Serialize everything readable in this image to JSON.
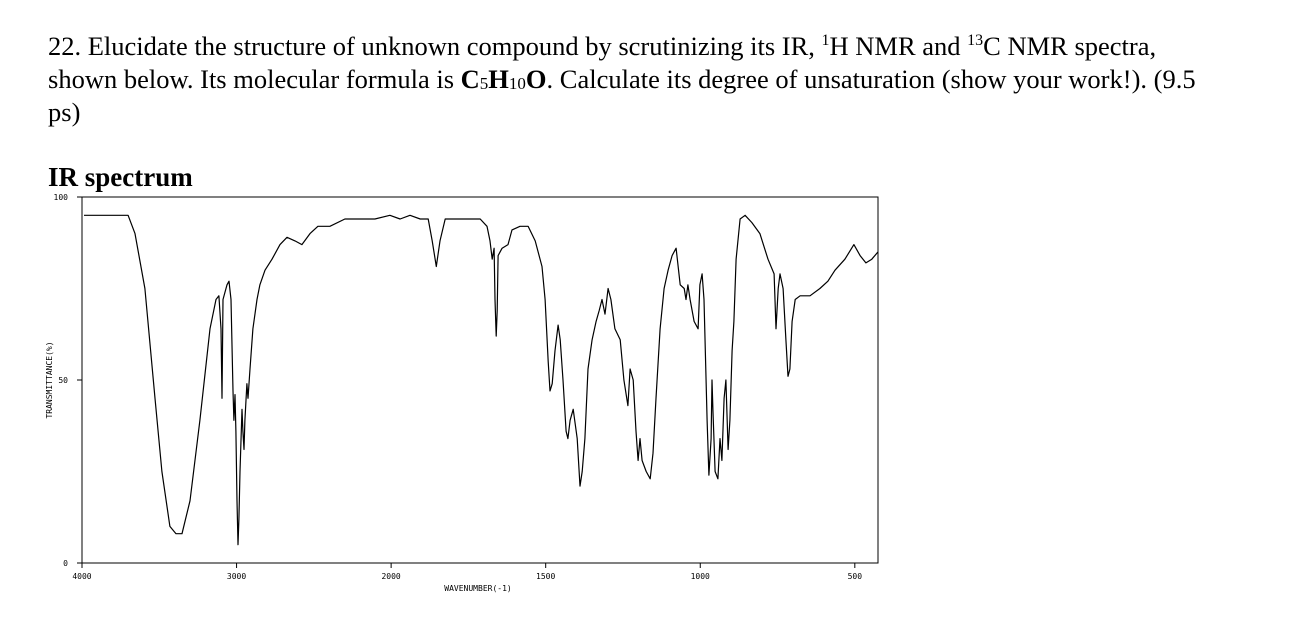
{
  "question": {
    "text_1": "22. Elucidate the structure of unknown compound by scrutinizing its IR, ",
    "sup_1": "1",
    "text_2": "H NMR and ",
    "sup_2": "13",
    "text_3": "C NMR spectra,",
    "text_4": "shown below. Its molecular formula is ",
    "formula": [
      {
        "element": "C",
        "count": "5"
      },
      {
        "element": "H",
        "count": "10"
      },
      {
        "element": "O"
      }
    ],
    "text_5": ". Calculate its degree of unsaturation (show your work!). (9.5",
    "text_6": "ps)"
  },
  "section_title": "IR spectrum",
  "chart_data": {
    "type": "line",
    "xlabel": "WAVENUMBER(-1)",
    "ylabel": "TRANSMITTANCE(%)",
    "xlim": [
      4000,
      425
    ],
    "x_scale_break": 2000,
    "xticks": [
      4000,
      3000,
      2000,
      1500,
      1000,
      500
    ],
    "ylim": [
      0,
      100
    ],
    "yticks": [
      100,
      50,
      0
    ],
    "color": "#000000",
    "x": [
      3987,
      3884,
      3767,
      3702,
      3657,
      3593,
      3528,
      3483,
      3431,
      3392,
      3353,
      3301,
      3237,
      3172,
      3133,
      3114,
      3101,
      3094,
      3088,
      3062,
      3049,
      3036,
      3023,
      3017,
      3010,
      3004,
      2997,
      2991,
      2985,
      2978,
      2965,
      2959,
      2952,
      2946,
      2933,
      2926,
      2913,
      2894,
      2868,
      2849,
      2816,
      2771,
      2719,
      2674,
      2622,
      2577,
      2525,
      2474,
      2396,
      2299,
      2202,
      2105,
      2008,
      1971,
      1939,
      1906,
      1880,
      1867,
      1854,
      1842,
      1825,
      1777,
      1712,
      1690,
      1680,
      1673,
      1667,
      1664,
      1660,
      1657,
      1654,
      1641,
      1622,
      1609,
      1583,
      1557,
      1534,
      1512,
      1502,
      1492,
      1486,
      1479,
      1470,
      1460,
      1453,
      1444,
      1434,
      1428,
      1421,
      1411,
      1398,
      1389,
      1382,
      1373,
      1363,
      1350,
      1337,
      1327,
      1318,
      1308,
      1298,
      1289,
      1276,
      1259,
      1247,
      1234,
      1227,
      1217,
      1208,
      1201,
      1195,
      1188,
      1175,
      1162,
      1153,
      1143,
      1130,
      1117,
      1104,
      1091,
      1078,
      1065,
      1052,
      1046,
      1040,
      1033,
      1020,
      1007,
      1001,
      994,
      988,
      978,
      972,
      965,
      962,
      959,
      952,
      943,
      936,
      930,
      923,
      917,
      910,
      904,
      897,
      891,
      884,
      871,
      855,
      833,
      807,
      781,
      761,
      755,
      748,
      742,
      732,
      723,
      716,
      710,
      703,
      693,
      677,
      645,
      613,
      587,
      564,
      532,
      503,
      483,
      464,
      445,
      425
    ],
    "y": [
      95,
      95,
      95,
      95,
      90,
      75,
      45,
      25,
      10,
      8,
      8,
      17,
      39,
      64,
      72,
      73,
      64,
      45,
      72,
      76,
      77,
      72,
      47,
      39,
      46,
      36,
      17,
      5,
      12,
      25,
      42,
      36,
      31,
      39,
      49,
      45,
      53,
      64,
      72,
      76,
      80,
      83,
      87,
      89,
      88,
      87,
      90,
      92,
      92,
      94,
      94,
      94,
      95,
      94,
      95,
      94,
      94,
      88,
      81,
      88,
      94,
      94,
      94,
      92,
      88,
      83,
      86,
      72,
      62,
      69,
      84,
      86,
      87,
      91,
      92,
      92,
      88,
      81,
      72,
      55,
      47,
      49,
      58,
      65,
      61,
      50,
      36,
      34,
      39,
      42,
      34,
      21,
      25,
      34,
      53,
      61,
      66,
      69,
      72,
      68,
      75,
      72,
      64,
      61,
      50,
      43,
      53,
      50,
      36,
      28,
      34,
      28,
      25,
      23,
      30,
      45,
      64,
      75,
      80,
      84,
      86,
      76,
      75,
      72,
      76,
      72,
      66,
      64,
      76,
      79,
      72,
      39,
      24,
      34,
      50,
      42,
      25,
      23,
      34,
      28,
      45,
      50,
      31,
      39,
      58,
      66,
      83,
      94,
      95,
      93,
      90,
      83,
      79,
      64,
      75,
      79,
      75,
      61,
      51,
      53,
      66,
      72,
      73,
      73,
      75,
      77,
      80,
      83,
      87,
      84,
      82,
      83,
      85
    ]
  }
}
